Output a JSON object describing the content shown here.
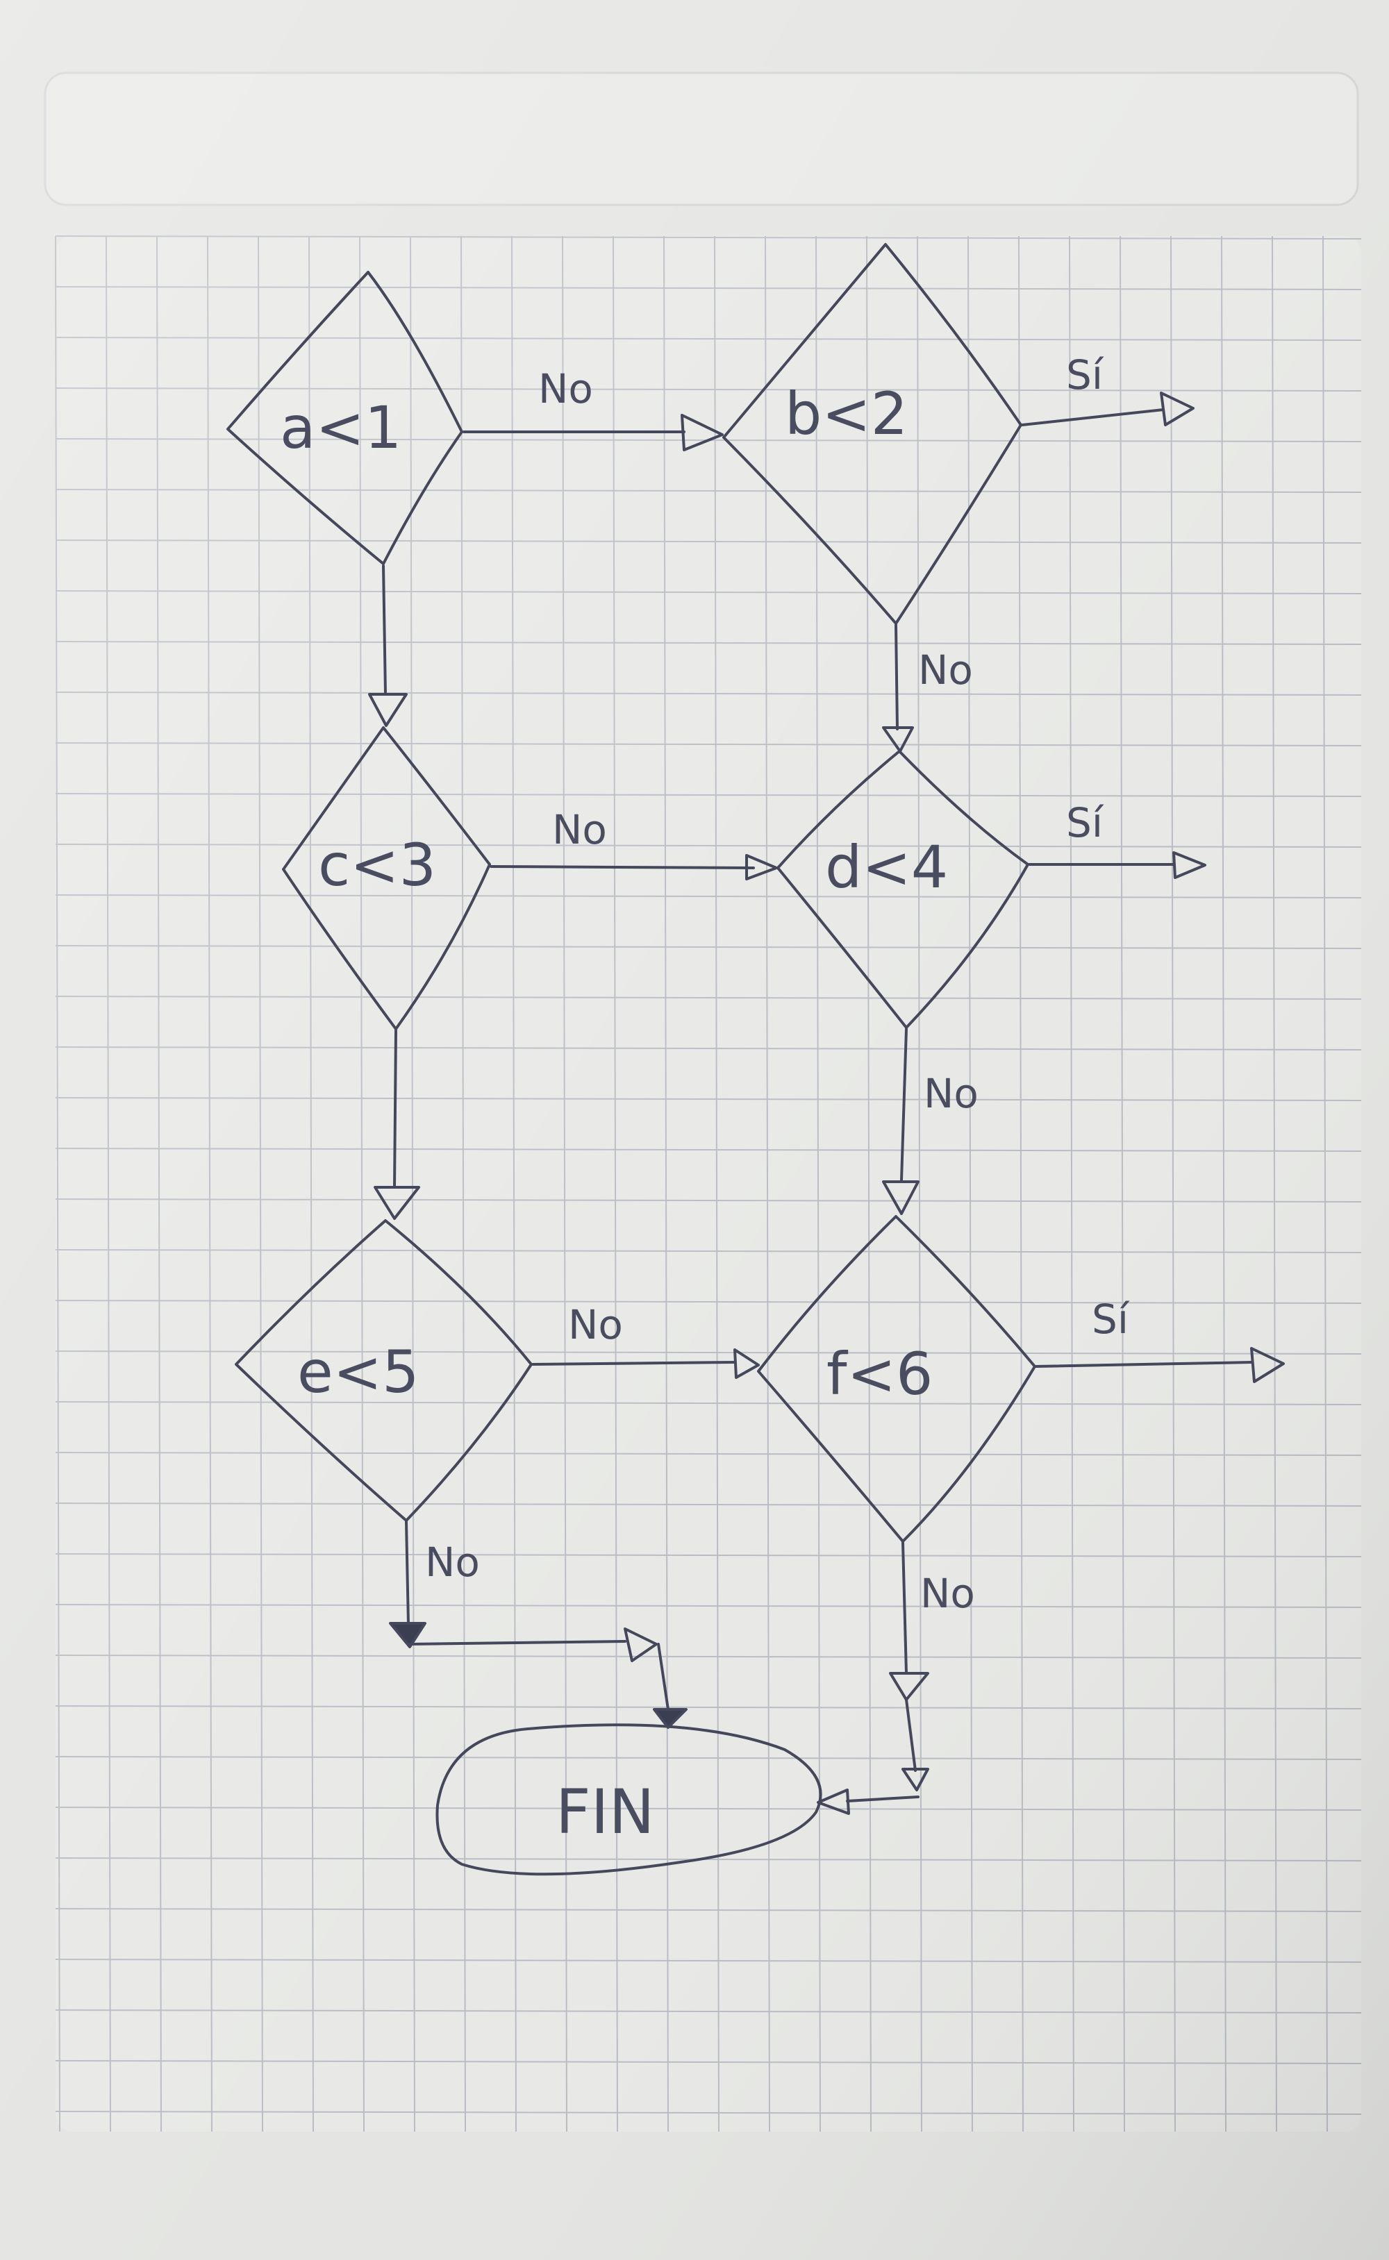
{
  "diagram": {
    "nodes": [
      {
        "id": "a",
        "label": "a<1"
      },
      {
        "id": "b",
        "label": "b<2"
      },
      {
        "id": "c",
        "label": "c<3"
      },
      {
        "id": "d",
        "label": "d<4"
      },
      {
        "id": "e",
        "label": "e<5"
      },
      {
        "id": "f",
        "label": "f<6"
      },
      {
        "id": "fin",
        "label": "FIN"
      }
    ],
    "edge_labels": {
      "a_b": "No",
      "b_out": "Sí",
      "b_d": "No",
      "c_d": "No",
      "d_out": "Sí",
      "d_f": "No",
      "e_f": "No",
      "f_out": "Sí",
      "e_fin": "No",
      "f_fin": "No"
    }
  },
  "colors": {
    "paper": "#e8e9e6",
    "grid": "#b9bcc4",
    "ink": "#45475a"
  }
}
